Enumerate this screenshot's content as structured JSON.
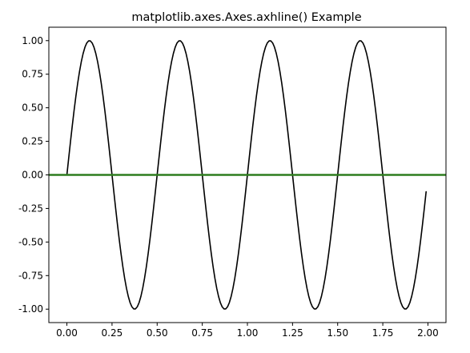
{
  "chart_data": {
    "type": "line",
    "title": "matplotlib.axes.Axes.axhline() Example",
    "xlabel": "",
    "ylabel": "",
    "xlim": [
      -0.1,
      2.1
    ],
    "ylim": [
      -1.1,
      1.1
    ],
    "x_ticks": [
      0.0,
      0.25,
      0.5,
      0.75,
      1.0,
      1.25,
      1.5,
      1.75,
      2.0
    ],
    "x_tick_labels": [
      "0.00",
      "0.25",
      "0.50",
      "0.75",
      "1.00",
      "1.25",
      "1.50",
      "1.75",
      "2.00"
    ],
    "y_ticks": [
      -1.0,
      -0.75,
      -0.5,
      -0.25,
      0.0,
      0.25,
      0.5,
      0.75,
      1.0
    ],
    "y_tick_labels": [
      "-1.00",
      "-0.75",
      "-0.50",
      "-0.25",
      "0.00",
      "0.25",
      "0.50",
      "0.75",
      "1.00"
    ],
    "grid": false,
    "series": [
      {
        "function": "sin(2*pi*2*x)",
        "x_range": [
          0.0,
          1.99
        ],
        "x_step": 0.01,
        "color": "#000000"
      }
    ],
    "hlines": [
      {
        "y": 0.0,
        "color": "#2e7d1f"
      }
    ]
  }
}
